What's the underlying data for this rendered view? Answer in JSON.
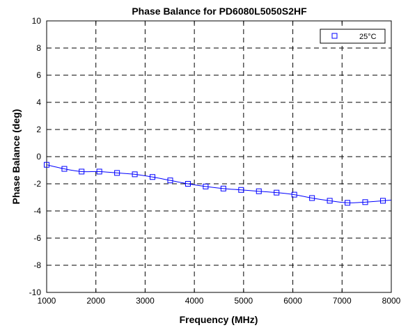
{
  "chart_data": {
    "type": "line",
    "title": "Phase Balance for PD6080L5050S2HF",
    "xlabel": "Frequency (MHz)",
    "ylabel": "Phase Balance (deg)",
    "xlim": [
      1000,
      8000
    ],
    "ylim": [
      -10,
      10
    ],
    "x_ticks": [
      1000,
      2000,
      3000,
      4000,
      5000,
      6000,
      7000,
      8000
    ],
    "y_ticks": [
      -10,
      -8,
      -6,
      -4,
      -2,
      0,
      2,
      4,
      6,
      8,
      10
    ],
    "grid": true,
    "legend_position": "top-right",
    "series_color": "#0000ff",
    "series": [
      {
        "name": "25°C",
        "marker": "square",
        "x": [
          1000,
          1360,
          1710,
          2070,
          2430,
          2790,
          3150,
          3510,
          3870,
          4230,
          4590,
          4950,
          5310,
          5670,
          6030,
          6390,
          6750,
          7110,
          7470,
          7830
        ],
        "y": [
          -0.6,
          -0.9,
          -1.1,
          -1.1,
          -1.2,
          -1.3,
          -1.5,
          -1.75,
          -2.0,
          -2.2,
          -2.35,
          -2.45,
          -2.55,
          -2.65,
          -2.8,
          -3.05,
          -3.25,
          -3.4,
          -3.35,
          -3.25
        ]
      }
    ]
  }
}
